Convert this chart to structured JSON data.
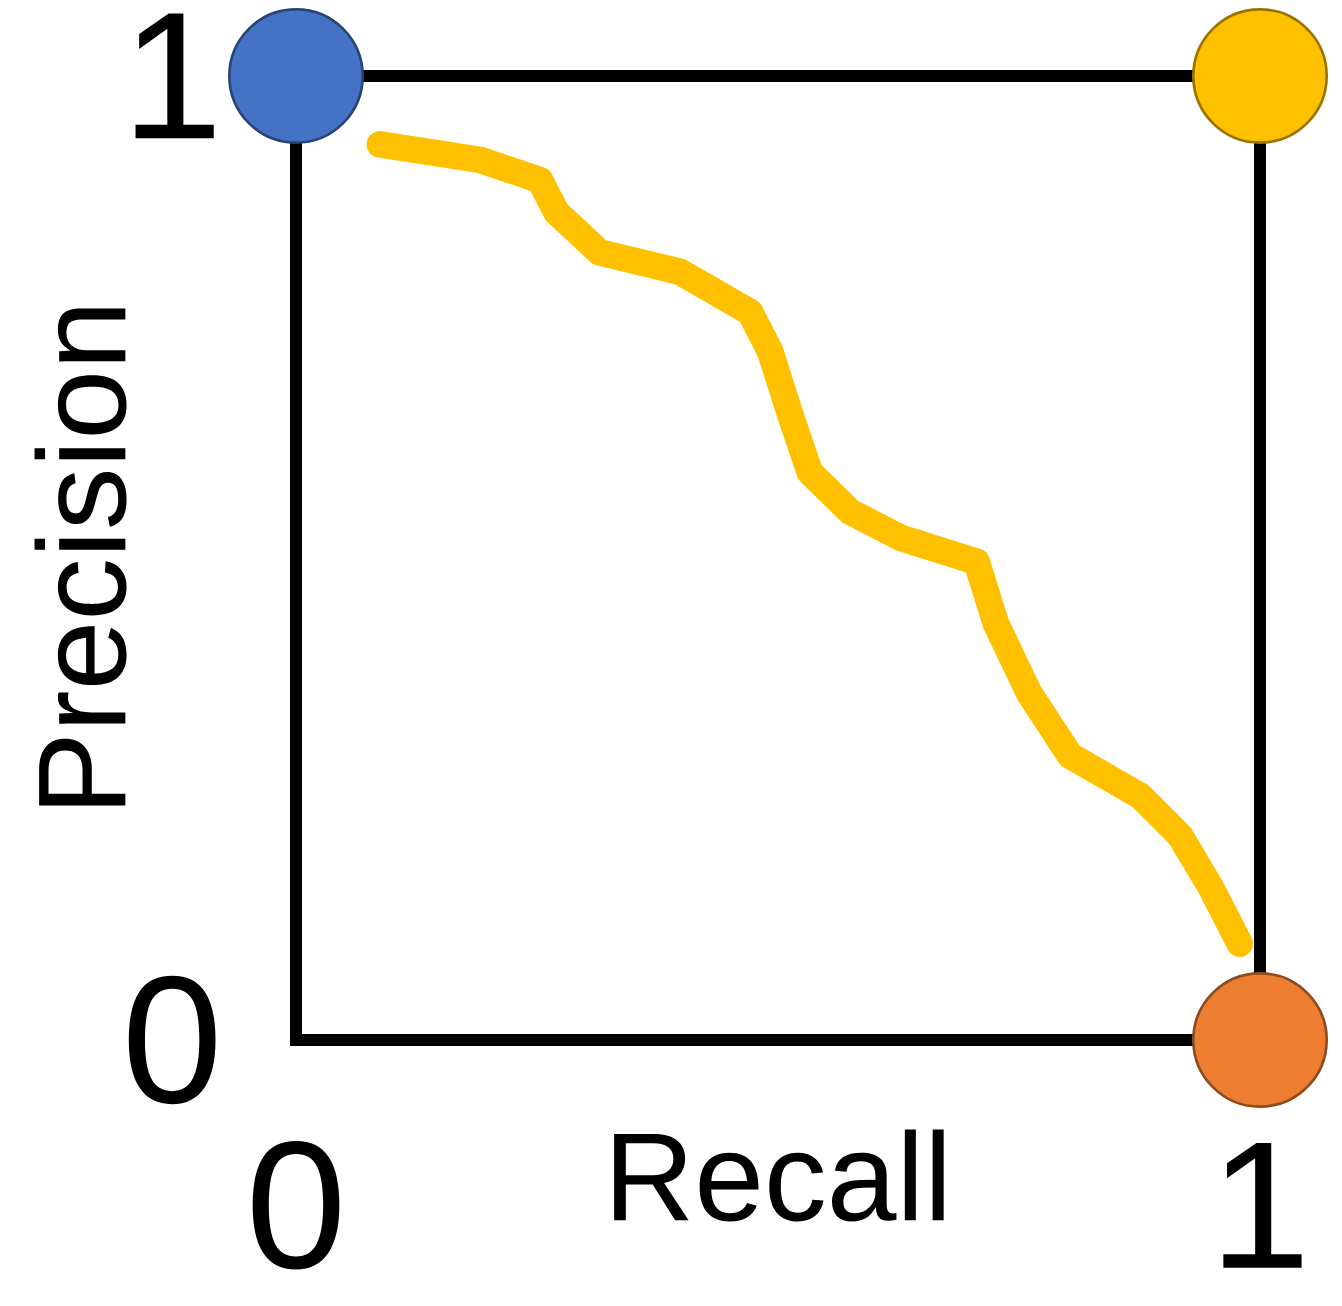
{
  "chart_data": {
    "type": "line",
    "xlabel": "Recall",
    "ylabel": "Precision",
    "xlim": [
      0,
      1
    ],
    "ylim": [
      0,
      1
    ],
    "xticks": [
      0,
      1
    ],
    "yticks": [
      0,
      1
    ],
    "series": [
      {
        "color": "#ffc000",
        "line_style": "solid",
        "marker": "none",
        "x": [
          0.087,
          0.191,
          0.253,
          0.27,
          0.315,
          0.398,
          0.471,
          0.492,
          0.512,
          0.533,
          0.575,
          0.627,
          0.706,
          0.726,
          0.761,
          0.803,
          0.876,
          0.917,
          0.948,
          0.979
        ],
        "values": [
          0.929,
          0.913,
          0.892,
          0.859,
          0.817,
          0.797,
          0.755,
          0.714,
          0.651,
          0.589,
          0.548,
          0.521,
          0.496,
          0.432,
          0.359,
          0.295,
          0.253,
          0.212,
          0.16,
          0.1
        ]
      },
      {
        "type": "scatter",
        "marker": "circle",
        "x": [
          0,
          1,
          1
        ],
        "values": [
          1,
          1,
          0
        ],
        "colors": [
          "#4472c4",
          "#ffc000",
          "#ed7d31"
        ]
      }
    ]
  }
}
